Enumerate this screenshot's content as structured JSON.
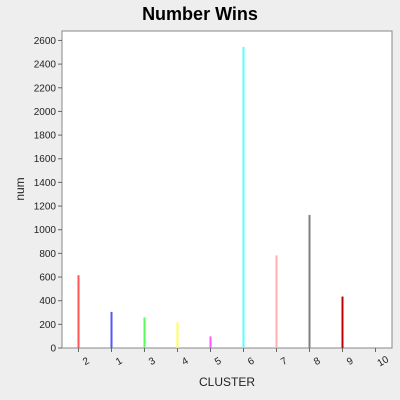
{
  "chart_data": {
    "type": "bar",
    "title": "Number Wins",
    "xlabel": "CLUSTER",
    "ylabel": "num",
    "categories": [
      "2",
      "1",
      "3",
      "4",
      "5",
      "6",
      "7",
      "8",
      "9",
      "10"
    ],
    "values": [
      615,
      305,
      258,
      218,
      98,
      2545,
      783,
      1125,
      435,
      0
    ],
    "colors": [
      "#ff5555",
      "#5555ff",
      "#55ff55",
      "#ffff55",
      "#ff55ff",
      "#55ffff",
      "#ffafaf",
      "#808080",
      "#c00000",
      "#000080"
    ],
    "yticks": [
      0,
      200,
      400,
      600,
      800,
      1000,
      1200,
      1400,
      1600,
      1800,
      2000,
      2200,
      2400,
      2600
    ],
    "ylim": [
      0,
      2680
    ],
    "grid": false,
    "plot_background": "#ffffff",
    "page_background": "#eeeeee"
  }
}
